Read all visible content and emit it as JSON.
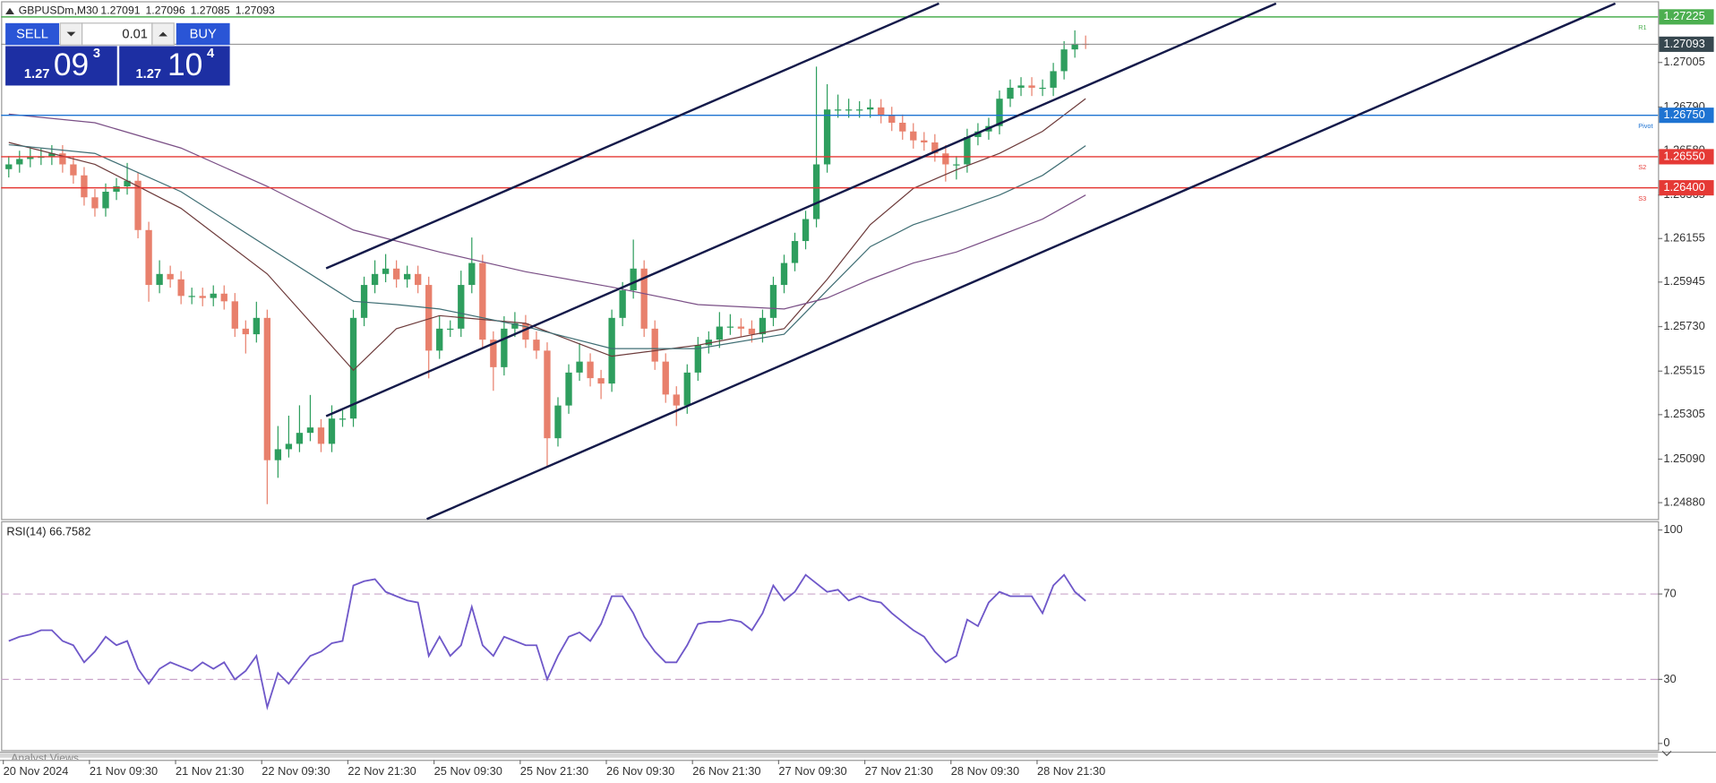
{
  "header": {
    "symbol": "GBPUSDm,M30",
    "prices": [
      "1.27091",
      "1.27096",
      "1.27085",
      "1.27093"
    ]
  },
  "trade_panel": {
    "sell": "SELL",
    "buy": "BUY",
    "lot": "0.01",
    "sell_price": {
      "prefix": "1.27",
      "main": "09",
      "sup": "3"
    },
    "buy_price": {
      "prefix": "1.27",
      "main": "10",
      "sup": "4"
    }
  },
  "bottom_tab": "Analyst Views",
  "chart_data": [
    {
      "type": "candlestick",
      "categories": [
        "20 Nov 2024",
        null,
        null,
        null,
        null,
        null,
        null,
        null,
        "21 Nov 09:30",
        null,
        null,
        null,
        null,
        null,
        null,
        null,
        "21 Nov 21:30",
        null,
        null,
        null,
        null,
        null,
        null,
        null,
        "22 Nov 09:30",
        null,
        null,
        null,
        null,
        null,
        null,
        null,
        "22 Nov 21:30",
        null,
        null,
        null,
        null,
        null,
        null,
        null,
        "25 Nov 09:30",
        null,
        null,
        null,
        null,
        null,
        null,
        null,
        "25 Nov 21:30",
        null,
        null,
        null,
        null,
        null,
        null,
        null,
        "26 Nov 09:30",
        null,
        null,
        null,
        null,
        null,
        null,
        null,
        "26 Nov 21:30",
        null,
        null,
        null,
        null,
        null,
        null,
        null,
        "27 Nov 09:30",
        null,
        null,
        null,
        null,
        null,
        null,
        null,
        "27 Nov 21:30",
        null,
        null,
        null,
        null,
        null,
        null,
        null,
        "28 Nov 09:30",
        null,
        null,
        null,
        null,
        null,
        null,
        null,
        "28 Nov 21:30",
        null,
        null,
        null,
        null
      ],
      "open": [
        1.2649,
        1.26513,
        1.26539,
        1.2655,
        1.2655,
        1.26566,
        1.26513,
        1.2646,
        1.26354,
        1.26301,
        1.26381,
        1.26407,
        1.26434,
        1.26196,
        1.25931,
        1.25984,
        1.25958,
        1.25878,
        1.25878,
        1.25868,
        1.25889,
        1.25852,
        1.2572,
        1.25693,
        1.25772,
        1.25085,
        1.25138,
        1.25164,
        1.25217,
        1.25243,
        1.25164,
        1.25286,
        1.25286,
        1.25772,
        1.25931,
        1.25984,
        1.2601,
        1.25958,
        1.25984,
        1.25931,
        1.25614,
        1.2572,
        1.2572,
        1.25931,
        1.26037,
        1.25667,
        1.25534,
        1.2572,
        1.25746,
        1.25667,
        1.25614,
        1.25191,
        1.25349,
        1.25508,
        1.25561,
        1.25481,
        1.25455,
        1.25772,
        1.25905,
        1.2601,
        1.2572,
        1.25561,
        1.25402,
        1.25349,
        1.25508,
        1.2564,
        1.25667,
        1.2573,
        1.2573,
        1.2572,
        1.25693,
        1.25772,
        1.25931,
        1.26037,
        1.26143,
        1.26249,
        1.26513,
        1.26778,
        1.26778,
        1.26778,
        1.26778,
        1.26788,
        1.26751,
        1.26714,
        1.26672,
        1.26629,
        1.26619,
        1.26566,
        1.26513,
        1.26513,
        1.26645,
        1.26672,
        1.26698,
        1.2683,
        1.26883,
        1.26894,
        1.26883,
        1.26883,
        1.26963,
        1.27068,
        1.27095
      ],
      "high": [
        1.26553,
        1.26579,
        1.2659,
        1.2659,
        1.26606,
        1.26606,
        1.26553,
        1.265,
        1.26394,
        1.26421,
        1.26447,
        1.2652,
        1.26474,
        1.26236,
        1.2605,
        1.26024,
        1.25998,
        1.25918,
        1.25918,
        1.25929,
        1.25929,
        1.25892,
        1.2576,
        1.2585,
        1.25812,
        1.2525,
        1.253,
        1.2535,
        1.254,
        1.25283,
        1.2535,
        1.25326,
        1.25812,
        1.25971,
        1.2605,
        1.2608,
        1.2605,
        1.26024,
        1.26024,
        1.25971,
        1.2578,
        1.2576,
        1.26,
        1.2616,
        1.26077,
        1.25707,
        1.2578,
        1.258,
        1.25786,
        1.25707,
        1.25654,
        1.25389,
        1.25548,
        1.2565,
        1.25601,
        1.25521,
        1.25812,
        1.25945,
        1.2615,
        1.2605,
        1.2576,
        1.25601,
        1.25442,
        1.25548,
        1.2568,
        1.25707,
        1.258,
        1.2579,
        1.2577,
        1.2576,
        1.25812,
        1.25971,
        1.26077,
        1.26183,
        1.26289,
        1.26985,
        1.269,
        1.2685,
        1.2683,
        1.26818,
        1.26828,
        1.26828,
        1.26791,
        1.26754,
        1.26712,
        1.26669,
        1.26659,
        1.26606,
        1.26553,
        1.26685,
        1.26712,
        1.26738,
        1.2687,
        1.26923,
        1.26934,
        1.26934,
        1.26923,
        1.27003,
        1.27108,
        1.2716,
        1.27135
      ],
      "low": [
        1.2645,
        1.26473,
        1.26499,
        1.2651,
        1.2651,
        1.26473,
        1.2642,
        1.26314,
        1.26261,
        1.26261,
        1.26341,
        1.26367,
        1.26156,
        1.2585,
        1.25891,
        1.25918,
        1.25838,
        1.25838,
        1.25828,
        1.25828,
        1.25812,
        1.2568,
        1.256,
        1.25653,
        1.24873,
        1.25,
        1.25098,
        1.25124,
        1.25177,
        1.25124,
        1.25124,
        1.25246,
        1.25246,
        1.25732,
        1.25891,
        1.25944,
        1.25918,
        1.25918,
        1.25891,
        1.2548,
        1.25574,
        1.2568,
        1.2568,
        1.25891,
        1.25627,
        1.2542,
        1.25494,
        1.2568,
        1.25627,
        1.25574,
        1.2505,
        1.25151,
        1.25309,
        1.25468,
        1.25441,
        1.2538,
        1.25415,
        1.25732,
        1.25865,
        1.2568,
        1.25521,
        1.25362,
        1.2525,
        1.25309,
        1.25468,
        1.256,
        1.25627,
        1.2569,
        1.2568,
        1.25653,
        1.25653,
        1.25732,
        1.25891,
        1.25997,
        1.26103,
        1.26209,
        1.26473,
        1.26738,
        1.26738,
        1.26738,
        1.26738,
        1.26711,
        1.26674,
        1.26632,
        1.26589,
        1.26579,
        1.26526,
        1.2643,
        1.2644,
        1.26473,
        1.26605,
        1.26632,
        1.26658,
        1.2679,
        1.26843,
        1.26843,
        1.26843,
        1.26843,
        1.26923,
        1.27028,
        1.2707
      ],
      "close": [
        1.26513,
        1.26539,
        1.2655,
        1.2655,
        1.26566,
        1.26513,
        1.2646,
        1.26354,
        1.26301,
        1.26381,
        1.26407,
        1.26434,
        1.26196,
        1.25931,
        1.25984,
        1.25958,
        1.25878,
        1.25878,
        1.25868,
        1.25889,
        1.25852,
        1.2572,
        1.25693,
        1.25772,
        1.25085,
        1.25138,
        1.25164,
        1.25217,
        1.25243,
        1.25164,
        1.25286,
        1.25286,
        1.25772,
        1.25931,
        1.25984,
        1.2601,
        1.25958,
        1.25984,
        1.25931,
        1.25614,
        1.2572,
        1.2572,
        1.25931,
        1.26037,
        1.25667,
        1.25534,
        1.2572,
        1.25746,
        1.25667,
        1.25614,
        1.25191,
        1.25349,
        1.25508,
        1.25561,
        1.25481,
        1.25455,
        1.25772,
        1.25905,
        1.2601,
        1.2572,
        1.25561,
        1.25402,
        1.25349,
        1.25508,
        1.2564,
        1.25667,
        1.2573,
        1.2573,
        1.2572,
        1.25693,
        1.25772,
        1.25931,
        1.26037,
        1.26143,
        1.26249,
        1.26513,
        1.26778,
        1.26778,
        1.26778,
        1.26778,
        1.26788,
        1.26751,
        1.26714,
        1.26672,
        1.26629,
        1.26619,
        1.26566,
        1.26513,
        1.26513,
        1.26645,
        1.26672,
        1.26698,
        1.2683,
        1.26883,
        1.26894,
        1.26883,
        1.26883,
        1.26963,
        1.27068,
        1.27095,
        1.27093
      ],
      "bull_color": "#2e9e5e",
      "bear_color": "#e8806c",
      "overlays": [
        {
          "color": "#6d3b3b",
          "x": [
            0,
            8,
            16,
            24,
            32,
            36,
            40,
            48,
            56,
            64,
            72,
            76,
            80,
            84,
            88,
            92,
            96,
            100
          ],
          "values": [
            1.26619,
            1.26513,
            1.26301,
            1.25984,
            1.25519,
            1.2572,
            1.25783,
            1.25746,
            1.25587,
            1.2564,
            1.2572,
            1.25958,
            1.26222,
            1.26397,
            1.26487,
            1.26566,
            1.26672,
            1.2683
          ]
        },
        {
          "color": "#3f6e74",
          "x": [
            0,
            8,
            16,
            24,
            32,
            36,
            40,
            48,
            56,
            64,
            72,
            76,
            80,
            84,
            88,
            92,
            96,
            100
          ],
          "values": [
            1.26608,
            1.26566,
            1.26381,
            1.26116,
            1.25852,
            1.25836,
            1.25815,
            1.2573,
            1.25624,
            1.25624,
            1.25693,
            1.25905,
            1.26116,
            1.26222,
            1.26291,
            1.26365,
            1.2646,
            1.26603
          ]
        },
        {
          "color": "#7a4f86",
          "x": [
            0,
            8,
            16,
            24,
            32,
            36,
            40,
            48,
            56,
            64,
            72,
            76,
            80,
            84,
            88,
            92,
            96,
            100
          ],
          "values": [
            1.26756,
            1.26714,
            1.26592,
            1.26407,
            1.26196,
            1.26143,
            1.2609,
            1.25995,
            1.25921,
            1.25836,
            1.25815,
            1.25868,
            1.25958,
            1.26037,
            1.2609,
            1.26169,
            1.26249,
            1.26365
          ]
        }
      ],
      "lines": [
        {
          "name": "R1",
          "value": 1.27225,
          "color": "#4caf50"
        },
        {
          "value": 1.27093,
          "color": "#37474f",
          "line_color": "#8a8a8a"
        },
        {
          "name": "Pivot",
          "value": 1.2675,
          "label": "1.26750",
          "color": "#1e73d2"
        },
        {
          "name": "S2",
          "value": 1.2655,
          "label": "1.26550",
          "color": "#e53935"
        },
        {
          "name": "S3",
          "value": 1.264,
          "label": "1.26400",
          "color": "#e53935"
        }
      ],
      "ylim": [
        1.24801,
        1.2729
      ],
      "yticks": [
        1.27005,
        {
          "value": 1.2679,
          "label": "1.26790"
        },
        {
          "value": 1.2658,
          "label": "1.26580"
        },
        1.26365,
        1.26155,
        1.25945,
        {
          "value": 1.2573,
          "label": "1.25730"
        },
        1.25515,
        1.25305,
        {
          "value": 1.2509,
          "label": "1.25090"
        },
        {
          "value": 1.2488,
          "label": "1.24880"
        }
      ]
    },
    {
      "type": "line",
      "title": "RSI(14) 66.7582",
      "color": "#6f58c9",
      "level_color": "#c9a4c9",
      "values": [
        48,
        50,
        51,
        53,
        53,
        48,
        46,
        38,
        43,
        50,
        46,
        48,
        35,
        28,
        35,
        38,
        36,
        34,
        38,
        35,
        38,
        30,
        34,
        41,
        17,
        33,
        28,
        35,
        41,
        43,
        47,
        48,
        74,
        76,
        77,
        71,
        69,
        67,
        66,
        41,
        50,
        41,
        46,
        64,
        46,
        41,
        50,
        48,
        46,
        46,
        30,
        41,
        50,
        52,
        48,
        56,
        69,
        69,
        61,
        50,
        43,
        38,
        38,
        46,
        56,
        57,
        57,
        58,
        57,
        53,
        61,
        74,
        67,
        71,
        79,
        75,
        71,
        72,
        67,
        69,
        67,
        66,
        61,
        57,
        53,
        50,
        43,
        38,
        41,
        58,
        55,
        66,
        71,
        69,
        69,
        69,
        61,
        74,
        79,
        71,
        66.7582
      ],
      "ylim": [
        0,
        100
      ],
      "yticks": [
        0,
        30,
        70,
        100
      ],
      "levels": [
        30,
        70
      ]
    }
  ]
}
